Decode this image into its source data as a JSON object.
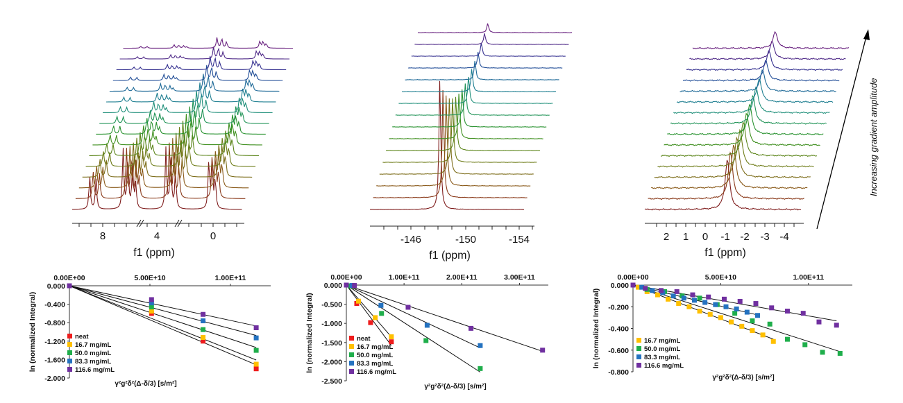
{
  "chart_data": [
    {
      "type": "line",
      "name": "stacked-spectra-1h",
      "title": "",
      "xlabel": "f1 (ppm)",
      "x_reversed": true,
      "axis_break_marks": true,
      "ticks": [
        "8",
        "4",
        "0"
      ],
      "n_traces": 16,
      "peaks_ppm": [
        8.7,
        8.3,
        6.6,
        6.3,
        6.0,
        5.8,
        3.9,
        3.6,
        3.3,
        1.2,
        1.0,
        0.8
      ],
      "peak_heights": [
        0.55,
        0.5,
        1.0,
        0.9,
        0.7,
        0.4,
        1.0,
        0.95,
        0.6,
        0.8,
        0.75,
        0.5
      ],
      "attenuation_rates": [
        0.9,
        0.9,
        0.9,
        0.9,
        0.9,
        0.9,
        0.55,
        0.55,
        0.55,
        0.6,
        0.6,
        0.6
      ]
    },
    {
      "type": "line",
      "name": "stacked-spectra-19f",
      "title": "",
      "xlabel": "f1 (ppm)",
      "x_reversed": true,
      "ticks": [
        "-146",
        "-150",
        "-154"
      ],
      "n_traces": 16,
      "peaks_ppm": [
        -148.9
      ],
      "peak_heights": [
        1.0
      ],
      "attenuation_rates": [
        0.82
      ]
    },
    {
      "type": "line",
      "name": "stacked-spectra-11b",
      "title": "",
      "xlabel": "f1 (ppm)",
      "x_reversed": true,
      "ticks": [
        "2",
        "1",
        "0",
        "-1",
        "-2",
        "-3",
        "-4"
      ],
      "n_traces": 16,
      "peaks_ppm": [
        -1.0
      ],
      "peak_heights": [
        0.6
      ],
      "attenuation_rates": [
        0.35
      ],
      "annotation": "Increasing gradient amplitude"
    },
    {
      "type": "scatter",
      "name": "plot-1",
      "xlabel": "γ²g²δ²(Δ-δ/3) [s/m²]",
      "ylabel": "ln (normalized Integral)",
      "xlim": [
        0,
        125000000000
      ],
      "ylim": [
        -2.0,
        0.0
      ],
      "x_ticks": [
        {
          "v": 0,
          "label": "0.00E+00"
        },
        {
          "v": 50000000000,
          "label": "5.00E+10"
        },
        {
          "v": 100000000000,
          "label": "1.00E+11"
        }
      ],
      "y_ticks": [
        {
          "v": 0.0,
          "label": "0.000"
        },
        {
          "v": -0.4,
          "label": "-0.400"
        },
        {
          "v": -0.8,
          "label": "-0.800"
        },
        {
          "v": -1.2,
          "label": "-1.200"
        },
        {
          "v": -1.6,
          "label": "-1.600"
        },
        {
          "v": -2.0,
          "label": "-2.000"
        }
      ],
      "legend_position": "bottom-left",
      "x": [
        0,
        51000000000,
        83000000000,
        116000000000
      ],
      "series": [
        {
          "name": "neat",
          "color": "#ee1c1c",
          "values": [
            0,
            -0.6,
            -1.2,
            -1.8
          ]
        },
        {
          "name": "16.7 mg/mL",
          "color": "#ffc000",
          "values": [
            0,
            -0.55,
            -1.12,
            -1.7
          ]
        },
        {
          "name": "50.0 mg/mL",
          "color": "#1fae4b",
          "values": [
            0,
            -0.46,
            -0.95,
            -1.4
          ]
        },
        {
          "name": "83.3 mg/mL",
          "color": "#2472c0",
          "values": [
            0,
            -0.37,
            -0.76,
            -1.13
          ]
        },
        {
          "name": "116.6 mg/mL",
          "color": "#7030a0",
          "values": [
            0,
            -0.3,
            -0.62,
            -0.91
          ]
        }
      ]
    },
    {
      "type": "scatter",
      "name": "plot-2",
      "xlabel": "γ²g²δ²(Δ-δ/3) [s/m²]",
      "ylabel": "ln (normalized Integral)",
      "xlim": [
        0,
        350000000000
      ],
      "ylim": [
        -2.5,
        0.0
      ],
      "x_ticks": [
        {
          "v": 0,
          "label": "0.00E+00"
        },
        {
          "v": 100000000000,
          "label": "1.00E+11"
        },
        {
          "v": 200000000000,
          "label": "2.00E+11"
        },
        {
          "v": 300000000000,
          "label": "3.00E+11"
        }
      ],
      "y_ticks": [
        {
          "v": 0.0,
          "label": "0.000"
        },
        {
          "v": -0.5,
          "label": "-0.500"
        },
        {
          "v": -1.0,
          "label": "-1.000"
        },
        {
          "v": -1.5,
          "label": "-1.500"
        },
        {
          "v": -2.0,
          "label": "-2.000"
        },
        {
          "v": -2.5,
          "label": "-2.500"
        }
      ],
      "legend_position": "bottom-left",
      "series": [
        {
          "name": "neat",
          "color": "#ee1c1c",
          "x": [
            0,
            18000000000,
            42000000000,
            78000000000
          ],
          "values": [
            0,
            -0.48,
            -0.98,
            -1.48
          ]
        },
        {
          "name": "16.7 mg/mL",
          "color": "#ffc000",
          "x": [
            0,
            21000000000,
            50000000000,
            78000000000
          ],
          "values": [
            0,
            -0.42,
            -0.85,
            -1.35
          ]
        },
        {
          "name": "50.0 mg/mL",
          "color": "#1fae4b",
          "x": [
            0,
            7000000000,
            61000000000,
            138000000000,
            232000000000
          ],
          "values": [
            0,
            -0.02,
            -0.74,
            -1.45,
            -2.18
          ]
        },
        {
          "name": "83.3 mg/mL",
          "color": "#2472c0",
          "x": [
            0,
            10000000000,
            60000000000,
            140000000000,
            232000000000
          ],
          "values": [
            0,
            -0.01,
            -0.53,
            -1.05,
            -1.58
          ]
        },
        {
          "name": "116.6 mg/mL",
          "color": "#7030a0",
          "x": [
            0,
            14000000000,
            107000000000,
            216000000000,
            340000000000
          ],
          "values": [
            0,
            -0.01,
            -0.58,
            -1.13,
            -1.7
          ]
        }
      ]
    },
    {
      "type": "scatter",
      "name": "plot-3",
      "xlabel": "γ²g²δ²(Δ-δ/3) [s/m²]",
      "ylabel": "ln (normalized Integral)",
      "xlim": [
        0,
        125000000000
      ],
      "ylim": [
        -0.8,
        0.0
      ],
      "x_ticks": [
        {
          "v": 0,
          "label": "0.00E+00"
        },
        {
          "v": 50000000000,
          "label": "5.00E+10"
        },
        {
          "v": 100000000000,
          "label": "1.00E+11"
        }
      ],
      "y_ticks": [
        {
          "v": 0.0,
          "label": "0.000"
        },
        {
          "v": -0.2,
          "label": "-0.200"
        },
        {
          "v": -0.4,
          "label": "-0.400"
        },
        {
          "v": -0.6,
          "label": "-0.600"
        },
        {
          "v": -0.8,
          "label": "-0.800"
        }
      ],
      "legend_position": "bottom-left",
      "series": [
        {
          "name": "16.7 mg/mL",
          "color": "#ffc000",
          "x": [
            0,
            3000000000,
            8000000000,
            14000000000,
            20000000000,
            26000000000,
            32000000000,
            38000000000,
            44000000000,
            50000000000,
            56000000000,
            62000000000,
            68000000000,
            74000000000,
            80000000000
          ],
          "values": [
            0,
            -0.02,
            -0.06,
            -0.09,
            -0.13,
            -0.17,
            -0.2,
            -0.24,
            -0.27,
            -0.3,
            -0.34,
            -0.38,
            -0.42,
            -0.46,
            -0.52
          ]
        },
        {
          "name": "50.0 mg/mL",
          "color": "#1fae4b",
          "x": [
            0,
            8000000000,
            18000000000,
            28000000000,
            38000000000,
            48000000000,
            58000000000,
            68000000000,
            78000000000,
            88000000000,
            98000000000,
            108000000000,
            118000000000
          ],
          "values": [
            0,
            -0.04,
            -0.06,
            -0.1,
            -0.12,
            -0.18,
            -0.26,
            -0.33,
            -0.36,
            -0.5,
            -0.55,
            -0.62,
            -0.63
          ]
        },
        {
          "name": "83.3 mg/mL",
          "color": "#2472c0",
          "x": [
            0,
            5000000000,
            11000000000,
            17000000000,
            23000000000,
            29000000000,
            35000000000,
            41000000000,
            47000000000,
            53000000000,
            59000000000,
            65000000000,
            71000000000
          ],
          "values": [
            0,
            -0.02,
            -0.05,
            -0.07,
            -0.1,
            -0.12,
            -0.14,
            -0.16,
            -0.18,
            -0.2,
            -0.22,
            -0.25,
            -0.28
          ]
        },
        {
          "name": "116.6 mg/mL",
          "color": "#7030a0",
          "x": [
            0,
            7000000000,
            16000000000,
            25000000000,
            34000000000,
            43000000000,
            52000000000,
            61000000000,
            70000000000,
            79000000000,
            88000000000,
            97000000000,
            106000000000,
            116000000000
          ],
          "values": [
            0,
            -0.03,
            -0.05,
            -0.06,
            -0.09,
            -0.11,
            -0.13,
            -0.15,
            -0.17,
            -0.21,
            -0.24,
            -0.26,
            -0.34,
            -0.37
          ]
        }
      ]
    }
  ],
  "spectrum_colors": [
    "#7f1d1d",
    "#8a3a1a",
    "#8a5a1a",
    "#7d6d1a",
    "#6f7d1a",
    "#5d861c",
    "#3f8f1f",
    "#2a9331",
    "#1f9356",
    "#1f8f7a",
    "#1f7f91",
    "#1f6a98",
    "#234f98",
    "#332f8f",
    "#4f2a88",
    "#6a2380",
    "#7e1d6c"
  ]
}
